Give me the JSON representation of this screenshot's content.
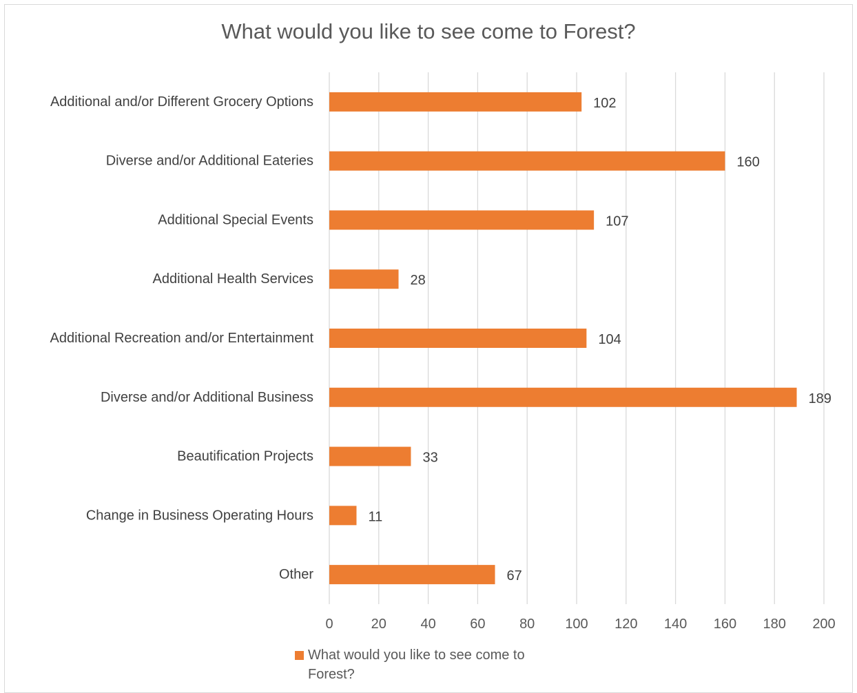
{
  "chart_data": {
    "type": "bar",
    "orientation": "horizontal",
    "title": "What would you like to see come to Forest?",
    "categories": [
      "Additional and/or Different Grocery Options",
      "Diverse and/or Additional Eateries",
      "Additional Special Events",
      "Additional Health Services",
      "Additional Recreation and/or Entertainment",
      "Diverse and/or Additional Business",
      "Beautification Projects",
      "Change in Business Operating Hours",
      "Other"
    ],
    "series": [
      {
        "name": "What would you like to see come to Forest?",
        "values": [
          102,
          160,
          107,
          28,
          104,
          189,
          33,
          11,
          67
        ],
        "color": "#ED7D31"
      }
    ],
    "xlim": [
      0,
      200
    ],
    "xticks": [
      0,
      20,
      40,
      60,
      80,
      100,
      120,
      140,
      160,
      180,
      200
    ],
    "gridlines": "vertical",
    "legend_position": "bottom",
    "data_labels": true
  }
}
